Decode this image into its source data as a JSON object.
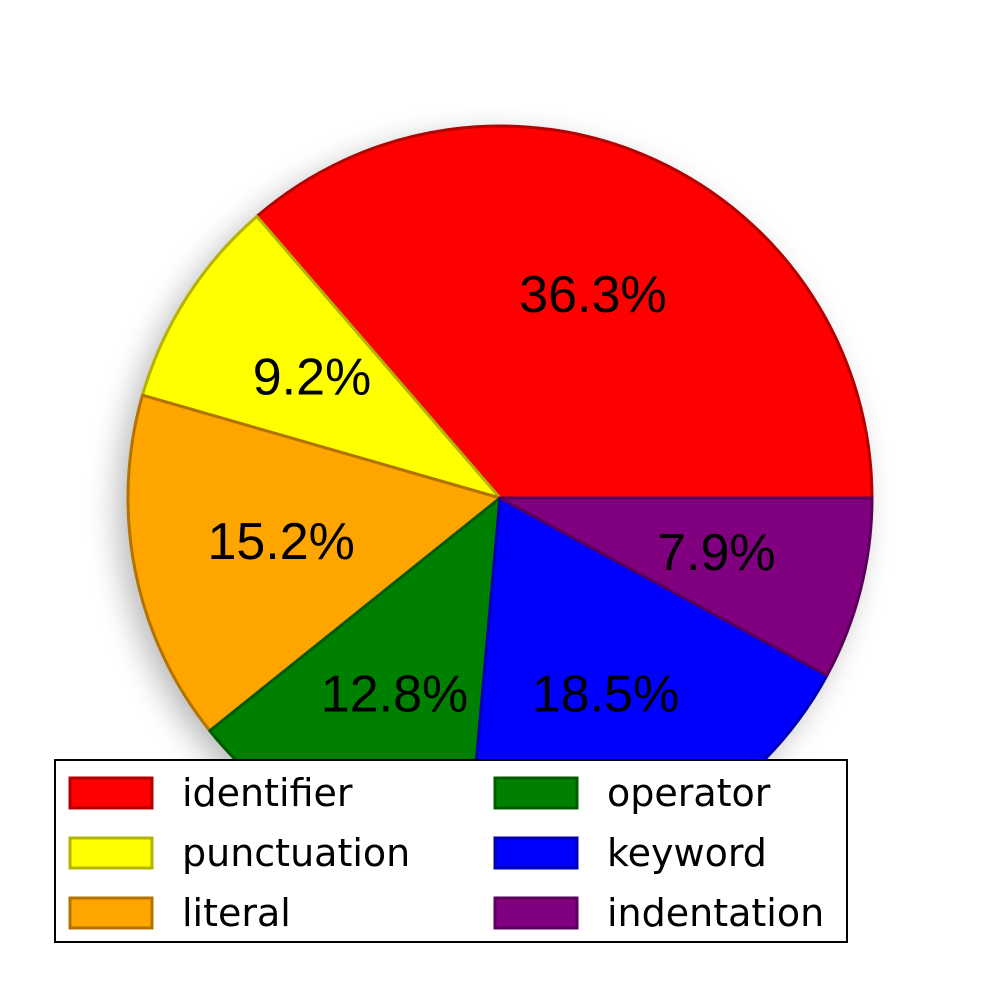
{
  "chart_data": {
    "type": "pie",
    "slices": [
      {
        "label": "identifier",
        "value": 36.3,
        "percent_label": "36.3%",
        "color": "#ff0000",
        "edge": "#b30000"
      },
      {
        "label": "punctuation",
        "value": 9.2,
        "percent_label": "9.2%",
        "color": "#ffff00",
        "edge": "#b3b300"
      },
      {
        "label": "literal",
        "value": 15.2,
        "percent_label": "15.2%",
        "color": "#ffa500",
        "edge": "#b37300"
      },
      {
        "label": "operator",
        "value": 12.8,
        "percent_label": "12.8%",
        "color": "#008000",
        "edge": "#005a00"
      },
      {
        "label": "keyword",
        "value": 18.5,
        "percent_label": "18.5%",
        "color": "#0000ff",
        "edge": "#0000b3"
      },
      {
        "label": "indentation",
        "value": 7.9,
        "percent_label": "7.9%",
        "color": "#800080",
        "edge": "#5a005a"
      }
    ],
    "start_angle_deg": 0,
    "direction": "counterclockwise",
    "shadow": true,
    "legend": {
      "placement": "lower-center",
      "columns": 2
    }
  }
}
